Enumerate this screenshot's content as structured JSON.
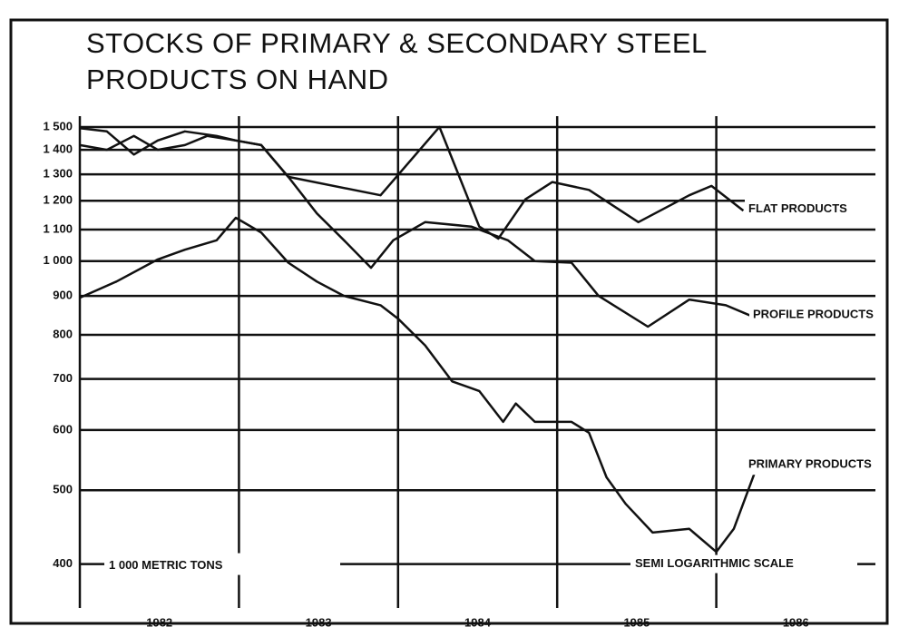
{
  "chart_data": {
    "type": "line",
    "title": "STOCKS OF PRIMARY & SECONDARY STEEL PRODUCTS ON HAND",
    "annotations": [
      "1 000 METRIC TONS",
      "SEMI LOGARITHMIC SCALE"
    ],
    "log_scale": true,
    "grid": true,
    "color": "#111111",
    "xlim": [
      1982,
      1987
    ],
    "ylim": [
      360,
      1550
    ],
    "yticks": [
      {
        "value": 1500,
        "label": "1 500"
      },
      {
        "value": 1400,
        "label": "1 400"
      },
      {
        "value": 1300,
        "label": "1 300"
      },
      {
        "value": 1200,
        "label": "1 200"
      },
      {
        "value": 1100,
        "label": "1 100"
      },
      {
        "value": 1000,
        "label": "1 000"
      },
      900,
      800,
      700,
      600,
      500,
      400
    ],
    "xticks": [
      {
        "value": 1982.5,
        "label": "1982"
      },
      {
        "value": 1983.5,
        "label": "1983"
      },
      {
        "value": 1984.5,
        "label": "1984"
      },
      {
        "value": 1985.5,
        "label": "1985"
      },
      {
        "value": 1986.5,
        "label": "1986"
      }
    ],
    "year_dividers": [
      1983,
      1984,
      1985,
      1986
    ],
    "series": [
      {
        "name": "FLAT PRODUCTS",
        "color": "#111111",
        "x": [
          1982.0,
          1982.17,
          1982.34,
          1982.49,
          1982.66,
          1982.86,
          1982.98,
          1983.14,
          1983.31,
          1983.89,
          1984.26,
          1984.51,
          1984.63,
          1984.8,
          1984.97,
          1985.2,
          1985.51,
          1985.83,
          1985.97,
          1986.17
        ],
        "values": [
          1495,
          1480,
          1380,
          1440,
          1480,
          1460,
          1440,
          1420,
          1290,
          1220,
          1500,
          1110,
          1070,
          1205,
          1270,
          1240,
          1125,
          1220,
          1255,
          1165
        ]
      },
      {
        "name": "PROFILE PRODUCTS",
        "color": "#111111",
        "x": [
          1982.0,
          1982.17,
          1982.34,
          1982.49,
          1982.66,
          1982.8,
          1982.98,
          1983.14,
          1983.31,
          1983.49,
          1983.66,
          1983.83,
          1983.97,
          1984.17,
          1984.46,
          1984.69,
          1984.86,
          1985.09,
          1985.26,
          1985.57,
          1985.83,
          1986.06,
          1986.26
        ],
        "values": [
          1420,
          1400,
          1460,
          1400,
          1420,
          1460,
          1440,
          1420,
          1290,
          1155,
          1065,
          980,
          1065,
          1125,
          1110,
          1065,
          1000,
          995,
          900,
          820,
          890,
          875,
          840
        ]
      },
      {
        "name": "PRIMARY PRODUCTS",
        "color": "#111111",
        "x": [
          1982.0,
          1982.23,
          1982.49,
          1982.66,
          1982.86,
          1982.98,
          1983.14,
          1983.31,
          1983.49,
          1983.66,
          1983.89,
          1984.0,
          1984.17,
          1984.34,
          1984.51,
          1984.66,
          1984.74,
          1984.86,
          1985.09,
          1985.2,
          1985.31,
          1985.43,
          1985.6,
          1985.83,
          1986.0,
          1986.11,
          1986.26
        ],
        "values": [
          895,
          940,
          1005,
          1035,
          1065,
          1140,
          1090,
          995,
          940,
          900,
          875,
          840,
          775,
          695,
          675,
          615,
          650,
          615,
          615,
          595,
          520,
          480,
          440,
          445,
          415,
          445,
          540
        ]
      }
    ]
  }
}
